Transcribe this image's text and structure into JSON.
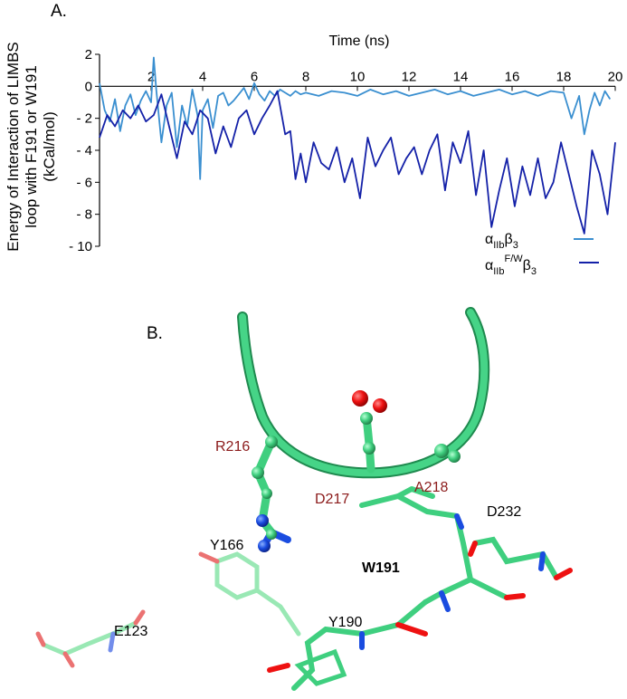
{
  "panel_a": {
    "label": "A."
  },
  "panel_b": {
    "label": "B.",
    "residues": {
      "r216": "R216",
      "d217": "D217",
      "a218": "A218",
      "d232": "D232",
      "w191": "W191",
      "y166": "Y166",
      "y190": "Y190",
      "e123": "E123"
    }
  },
  "chart_data": {
    "type": "line",
    "title": "",
    "xlabel": "Time (ns)",
    "ylabel": [
      "Energy of Interaction of LIMBS",
      "loop with F191 or W191",
      "(kCal/mol)"
    ],
    "xlim": [
      0,
      20
    ],
    "ylim": [
      -10,
      2
    ],
    "x_ticks": [
      2,
      4,
      6,
      8,
      10,
      12,
      14,
      16,
      18,
      20
    ],
    "y_ticks": [
      2,
      0,
      -2,
      -4,
      -6,
      -8,
      -10
    ],
    "y_tick_labels": [
      "2",
      "0",
      "- 2",
      "- 4",
      "- 6",
      "- 8",
      "- 10"
    ],
    "legend_position": "bottom-right",
    "colors": {
      "wt": "#3a8fd0",
      "mut": "#1421a8",
      "protein": "#3fcf7f"
    },
    "series": [
      {
        "key": "wt",
        "color": "#3a8fd0",
        "legend": {
          "base": "α",
          "sub": "IIb",
          "sup": "",
          "tail": "β",
          "tail_sub": "3"
        },
        "x": [
          0,
          0.2,
          0.4,
          0.6,
          0.8,
          1,
          1.2,
          1.4,
          1.6,
          1.8,
          2,
          2.1,
          2.2,
          2.4,
          2.6,
          2.8,
          3,
          3.2,
          3.4,
          3.6,
          3.8,
          3.9,
          4,
          4.2,
          4.4,
          4.6,
          4.8,
          5,
          5.2,
          5.4,
          5.6,
          5.8,
          6,
          6.2,
          6.4,
          6.6,
          6.8,
          7,
          7.2,
          7.4,
          7.6,
          7.8,
          8,
          8.5,
          9,
          9.5,
          10,
          10.5,
          11,
          11.5,
          12,
          12.5,
          13,
          13.5,
          14,
          14.5,
          15,
          15.5,
          16,
          16.5,
          17,
          17.5,
          18,
          18.3,
          18.6,
          18.8,
          19,
          19.2,
          19.4,
          19.6,
          19.8
        ],
        "y": [
          0.2,
          -1.5,
          -2.2,
          -0.8,
          -2.8,
          -1.2,
          -0.5,
          -1.8,
          -0.9,
          -0.3,
          -1.0,
          1.8,
          -0.2,
          -3.5,
          -1.2,
          -0.4,
          -3.8,
          -1.2,
          -2.5,
          -0.2,
          -1.8,
          -5.8,
          -1.5,
          -0.8,
          -2.6,
          -0.6,
          -0.4,
          -1.2,
          -0.9,
          -0.5,
          -0.1,
          -0.8,
          0.2,
          -0.5,
          -0.9,
          -0.3,
          -0.6,
          -0.2,
          -0.4,
          -0.6,
          -0.3,
          -0.5,
          -0.4,
          -0.6,
          -0.3,
          -0.4,
          -0.6,
          -0.2,
          -0.5,
          -0.3,
          -0.6,
          -0.4,
          -0.2,
          -0.5,
          -0.3,
          -0.6,
          -0.4,
          -0.2,
          -0.5,
          -0.3,
          -0.6,
          -0.3,
          -0.4,
          -2.0,
          -0.6,
          -3.0,
          -1.5,
          -0.4,
          -1.2,
          -0.3,
          -0.8
        ]
      },
      {
        "key": "mut",
        "color": "#1421a8",
        "legend": {
          "base": "α",
          "sub": "IIb",
          "sup": "F/W",
          "tail": "β",
          "tail_sub": "3"
        },
        "x": [
          0,
          0.3,
          0.6,
          0.9,
          1.2,
          1.5,
          1.8,
          2.1,
          2.4,
          2.7,
          3,
          3.3,
          3.6,
          3.9,
          4.2,
          4.5,
          4.8,
          5.1,
          5.4,
          5.7,
          6,
          6.3,
          6.6,
          6.9,
          7.2,
          7.4,
          7.6,
          7.8,
          8,
          8.3,
          8.6,
          8.9,
          9.2,
          9.5,
          9.8,
          10.1,
          10.4,
          10.7,
          11,
          11.3,
          11.6,
          11.9,
          12.2,
          12.5,
          12.8,
          13.1,
          13.4,
          13.7,
          14,
          14.3,
          14.6,
          14.9,
          15.2,
          15.5,
          15.8,
          16.1,
          16.4,
          16.7,
          17,
          17.3,
          17.6,
          17.9,
          18.2,
          18.5,
          18.8,
          19.1,
          19.4,
          19.7,
          20
        ],
        "y": [
          -3.2,
          -1.8,
          -2.5,
          -1.5,
          -2.0,
          -1.2,
          -2.2,
          -1.8,
          -0.5,
          -2.5,
          -4.5,
          -2.2,
          -3.0,
          -1.5,
          -2.0,
          -4.2,
          -2.5,
          -3.8,
          -2.0,
          -1.5,
          -3.0,
          -2.0,
          -1.2,
          -0.3,
          -3.0,
          -2.8,
          -5.8,
          -4.2,
          -6.0,
          -3.5,
          -4.8,
          -5.2,
          -3.8,
          -6.0,
          -4.5,
          -7.0,
          -3.2,
          -5.0,
          -4.0,
          -3.2,
          -5.5,
          -4.5,
          -3.8,
          -5.5,
          -4.0,
          -3.0,
          -6.5,
          -3.5,
          -4.8,
          -2.8,
          -6.8,
          -4.0,
          -8.8,
          -6.5,
          -4.5,
          -7.5,
          -5.0,
          -6.8,
          -4.5,
          -7.0,
          -6.0,
          -3.5,
          -5.5,
          -7.5,
          -9.2,
          -4.0,
          -5.5,
          -8.0,
          -3.5
        ]
      }
    ]
  }
}
